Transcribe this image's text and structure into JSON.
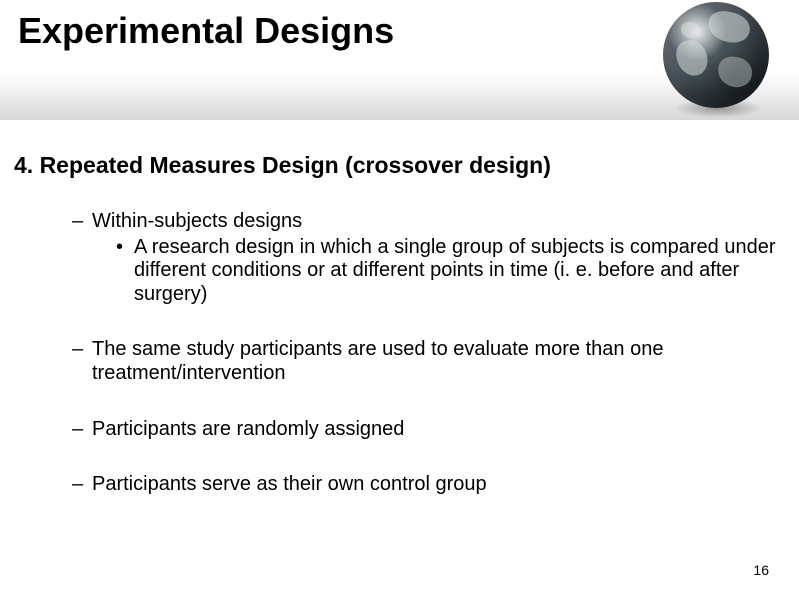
{
  "slide": {
    "title": "Experimental Designs",
    "subtitle": "4. Repeated Measures Design (crossover design)",
    "page_number": "16"
  },
  "bullets": {
    "b1": {
      "text": "Within-subjects designs",
      "sub": "A research design in which a single group of subjects is compared under different conditions or at different points in time (i. e. before and after surgery)"
    },
    "b2": {
      "text": "The same study participants are used to evaluate more than one treatment/intervention"
    },
    "b3": {
      "text": "Participants are randomly assigned"
    },
    "b4": {
      "text": "Participants serve as their own control group"
    }
  },
  "style": {
    "title_fontsize": 36,
    "title_color": "#000000",
    "subtitle_fontsize": 23,
    "body_fontsize": 20,
    "background_color": "#ffffff",
    "header_gradient_end": "#d8d8d8",
    "pagenum_fontsize": 14
  }
}
